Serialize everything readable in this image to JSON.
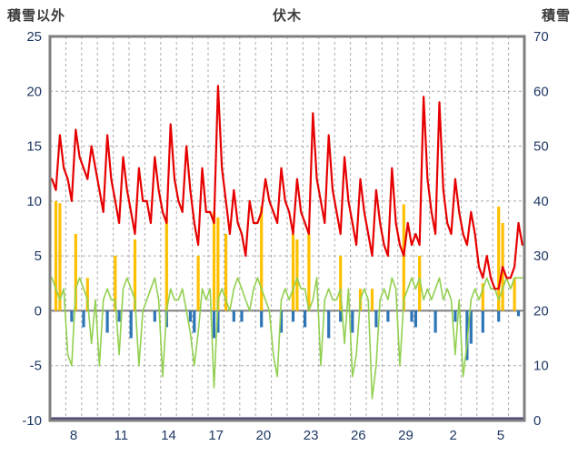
{
  "chart_data": {
    "type": "composite-line-bar",
    "title": "伏木",
    "left_axis": {
      "title": "積雪以外",
      "min": -10,
      "max": 25,
      "ticks": [
        25,
        20,
        15,
        10,
        5,
        0,
        -5,
        -10
      ]
    },
    "right_axis": {
      "title": "積雪",
      "min": 0,
      "max": 70,
      "ticks": [
        70,
        60,
        50,
        40,
        30,
        20,
        10,
        0
      ]
    },
    "x_axis": {
      "days": 30,
      "points_per_day": 4,
      "tick_labels": [
        {
          "label": "8",
          "day_index": 1
        },
        {
          "label": "11",
          "day_index": 4
        },
        {
          "label": "14",
          "day_index": 7
        },
        {
          "label": "17",
          "day_index": 10
        },
        {
          "label": "20",
          "day_index": 13
        },
        {
          "label": "23",
          "day_index": 16
        },
        {
          "label": "26",
          "day_index": 19
        },
        {
          "label": "29",
          "day_index": 22
        },
        {
          "label": "2",
          "day_index": 25
        },
        {
          "label": "5",
          "day_index": 28
        }
      ]
    },
    "colors": {
      "red_line": "#e60000",
      "green_line": "#92d050",
      "orange_bar": "#ffc000",
      "blue_bar": "#2e75b6",
      "snow_line": "#4a3d73",
      "grid": "#ababab",
      "zero_line": "#7f7f7f",
      "frame": "#7f7f7f",
      "tick_text": "#1f3864",
      "title_text": "#3b3b3b"
    },
    "series": [
      {
        "id": "orange-bars",
        "type": "bar",
        "axis": "left",
        "color": "orange_bar",
        "values": [
          0,
          10,
          9.8,
          0,
          0,
          0,
          7,
          0,
          0,
          3,
          0,
          0,
          0,
          0,
          0,
          0,
          5,
          0,
          0,
          0,
          0,
          6.5,
          0,
          0,
          0,
          0,
          0,
          0,
          0,
          8.5,
          0,
          0,
          0,
          0,
          0,
          0,
          0,
          5,
          0,
          0,
          0,
          9,
          8.5,
          0,
          7,
          0,
          0,
          0,
          0,
          0,
          0,
          0,
          0,
          9.5,
          0,
          0,
          0,
          0,
          0,
          0,
          0,
          7,
          6.5,
          0,
          0,
          7,
          0,
          0,
          0,
          0,
          0,
          0,
          0,
          5,
          0,
          0,
          0,
          0,
          2,
          0,
          0,
          2,
          0,
          0,
          0,
          0,
          0,
          0,
          0,
          9.7,
          0,
          0,
          0,
          5,
          0,
          0,
          0,
          0,
          0,
          0,
          0,
          0,
          0,
          0,
          0,
          0,
          0,
          0,
          0,
          2.5,
          0,
          0,
          0,
          9.5,
          8,
          0,
          0,
          3,
          0,
          0
        ]
      },
      {
        "id": "blue-bars",
        "type": "bar",
        "axis": "left",
        "color": "blue_bar",
        "values": [
          0,
          0,
          0,
          0,
          0,
          -1,
          0,
          0,
          -1.5,
          0,
          0,
          0,
          0,
          0,
          -2,
          0,
          0,
          -1,
          0,
          0,
          -2.5,
          0,
          0,
          0,
          0,
          0,
          -1,
          0,
          0,
          -1.5,
          0,
          0,
          0,
          0,
          0,
          -1,
          -2,
          0,
          0,
          0,
          0,
          -2.5,
          -2,
          0,
          0,
          0,
          -1,
          0,
          -1,
          0,
          0,
          0,
          0,
          -1.5,
          0,
          0,
          0,
          0,
          -2,
          0,
          0,
          -1,
          0,
          0,
          -1.5,
          0,
          0,
          0,
          0,
          0,
          -2.5,
          0,
          0,
          -1,
          0,
          0,
          -2,
          0,
          0,
          0,
          0,
          0,
          -1.5,
          0,
          0,
          -1,
          0,
          0,
          0,
          0,
          0,
          -1,
          -1.5,
          0,
          0,
          0,
          0,
          -2,
          0,
          0,
          0,
          0,
          -1,
          0,
          0,
          -4.5,
          -3,
          0,
          0,
          -2,
          0,
          0,
          0,
          -1,
          0,
          0,
          0,
          0,
          -0.5,
          0
        ]
      },
      {
        "id": "green-line",
        "type": "line",
        "axis": "left",
        "color": "green_line",
        "width": 1.6,
        "values": [
          3,
          2,
          1,
          2,
          -4,
          -5,
          2,
          3,
          2,
          1,
          -3,
          1,
          -5,
          1,
          2,
          1,
          1,
          -4,
          2,
          3,
          2,
          1,
          -5,
          0,
          1,
          2,
          3,
          1,
          -6,
          0,
          2,
          1,
          1,
          2,
          0,
          -2,
          -5,
          -2,
          2,
          1,
          2,
          -7,
          1,
          2,
          1,
          0,
          2,
          3,
          2,
          1,
          0,
          2,
          3,
          2,
          1,
          0,
          -4,
          -6,
          1,
          2,
          1,
          2,
          3,
          2,
          2,
          0,
          1,
          3,
          -5,
          1,
          2,
          1,
          1,
          2,
          -3,
          2,
          -6,
          -4,
          1,
          2,
          1,
          -8,
          -5,
          1,
          2,
          1,
          3,
          2,
          -5,
          1,
          2,
          3,
          2,
          3,
          1,
          2,
          1,
          2,
          3,
          1,
          2,
          1,
          -4,
          1,
          -6,
          -3,
          1,
          2,
          1,
          2,
          3,
          2,
          2,
          1,
          2,
          3,
          2,
          3,
          3,
          3
        ]
      },
      {
        "id": "red-line",
        "type": "line",
        "axis": "left",
        "color": "red_line",
        "width": 2.2,
        "values": [
          12,
          11,
          16,
          13,
          12,
          10,
          16.5,
          14,
          13,
          12,
          15,
          13,
          11,
          9,
          16,
          12,
          10,
          8,
          14,
          11,
          9,
          7,
          13,
          10,
          10,
          8,
          14,
          11,
          9,
          8,
          17,
          12,
          10,
          9,
          15,
          11,
          8,
          6,
          13,
          9,
          9,
          8,
          20.5,
          13,
          10,
          7,
          11,
          8,
          7,
          5,
          10,
          8,
          8,
          9,
          12,
          10,
          9,
          8,
          13,
          10,
          9,
          7,
          12,
          9,
          8,
          7,
          18,
          12,
          10,
          8,
          16,
          11,
          9,
          7,
          14,
          10,
          8,
          6,
          12,
          9,
          7,
          5,
          11,
          8,
          6,
          5,
          13,
          8,
          6,
          5,
          8,
          6,
          7,
          6,
          19.5,
          12,
          9,
          7,
          19,
          11,
          8,
          7,
          12,
          9,
          7,
          6,
          9,
          7,
          4,
          3,
          5,
          3,
          2,
          2,
          4,
          3,
          3,
          4,
          8,
          6
        ]
      },
      {
        "id": "snow-line",
        "type": "constant-line",
        "axis": "right",
        "color": "snow_line",
        "width": 3,
        "value": 0
      }
    ]
  }
}
